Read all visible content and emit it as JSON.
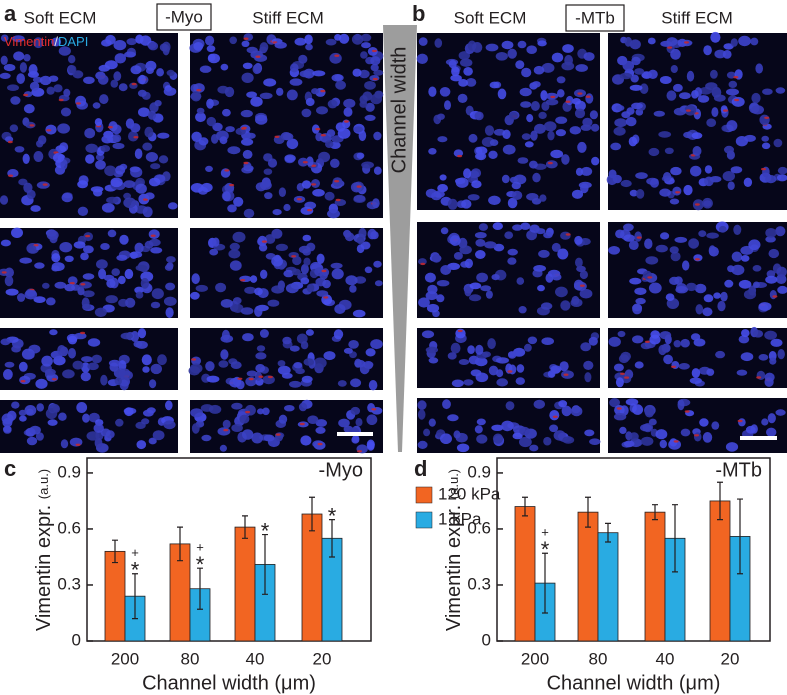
{
  "figure": {
    "panel_a": {
      "label": "a",
      "soft": "Soft ECM",
      "condition": "-Myo",
      "stiff": "Stiff ECM",
      "stain_red": "Vimentin",
      "stain_sep": "/",
      "stain_blue": "DAPI"
    },
    "gradient_label": "Channel width",
    "panel_b": {
      "label": "b",
      "soft": "Soft ECM",
      "condition": "-MTb",
      "stiff": "Stiff ECM"
    }
  },
  "chart_data": [
    {
      "type": "bar",
      "panel_label": "c",
      "annotation": "-Myo",
      "ylabel": "Vimentin expr.",
      "ylabel_unit": "(a.u.)",
      "xlabel": "Channel width (μm)",
      "categories": [
        "200",
        "80",
        "40",
        "20"
      ],
      "series": [
        {
          "name": "120 kPa",
          "color": "#f26522",
          "values": [
            0.48,
            0.52,
            0.61,
            0.68
          ],
          "errors": [
            0.06,
            0.09,
            0.06,
            0.09
          ]
        },
        {
          "name": "1 kPa",
          "color": "#29abe2",
          "values": [
            0.24,
            0.28,
            0.41,
            0.55
          ],
          "errors": [
            0.12,
            0.11,
            0.16,
            0.1
          ],
          "significance": [
            [
              "+",
              "*"
            ],
            [
              "+",
              "*"
            ],
            [
              "*"
            ],
            [
              "*"
            ]
          ]
        }
      ],
      "ylim": [
        0,
        0.98
      ],
      "yticks": [
        0,
        0.3,
        0.6,
        0.9
      ]
    },
    {
      "type": "bar",
      "panel_label": "d",
      "annotation": "-MTb",
      "ylabel": "Vimentin expr.",
      "ylabel_unit": "(a.u.)",
      "xlabel": "Channel width (μm)",
      "categories": [
        "200",
        "80",
        "40",
        "20"
      ],
      "series": [
        {
          "color": "#f26522",
          "values": [
            0.72,
            0.69,
            0.69,
            0.75
          ],
          "errors": [
            0.05,
            0.08,
            0.04,
            0.1
          ]
        },
        {
          "color": "#29abe2",
          "values": [
            0.31,
            0.58,
            0.55,
            0.56
          ],
          "errors": [
            0.16,
            0.05,
            0.18,
            0.2
          ],
          "significance": [
            [
              "+",
              "*"
            ],
            [],
            [],
            []
          ]
        }
      ],
      "ylim": [
        0,
        0.98
      ],
      "yticks": [
        0,
        0.3,
        0.6,
        0.9
      ]
    }
  ]
}
